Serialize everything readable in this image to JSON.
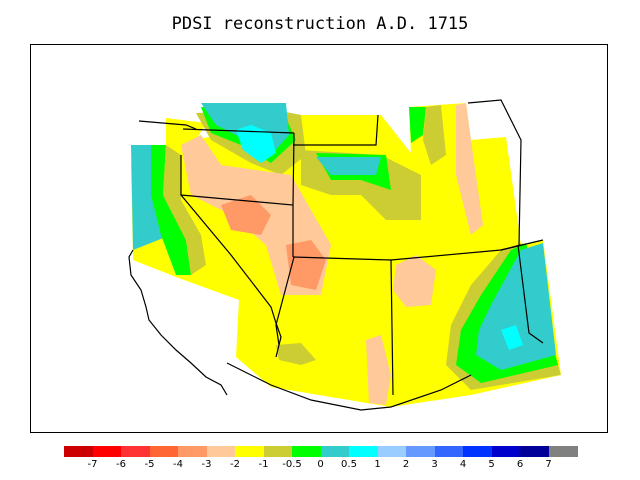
{
  "title": "PDSI reconstruction A.D. 1715",
  "colors": {
    "yellow": "#ffff00",
    "peach": "#ffc999",
    "salmon": "#ff9966",
    "olive": "#cccc33",
    "green": "#00ff00",
    "teal": "#33cccc",
    "cyan": "#00ffff",
    "boundary": "#000000"
  },
  "legend": {
    "swatches": [
      "#cc0000",
      "#ff0000",
      "#ff3333",
      "#ff6633",
      "#ff9966",
      "#ffc999",
      "#ffff00",
      "#cccc33",
      "#00ff00",
      "#33cccc",
      "#00ffff",
      "#99ccff",
      "#6699ff",
      "#3366ff",
      "#0033ff",
      "#0000cc",
      "#000099",
      "#808080"
    ],
    "tick_labels": [
      "-7",
      "-6",
      "-5",
      "-4",
      "-3",
      "-2",
      "-1",
      "-0.5",
      "0",
      "0.5",
      "1",
      "2",
      "3",
      "4",
      "5",
      "6",
      "7"
    ]
  }
}
